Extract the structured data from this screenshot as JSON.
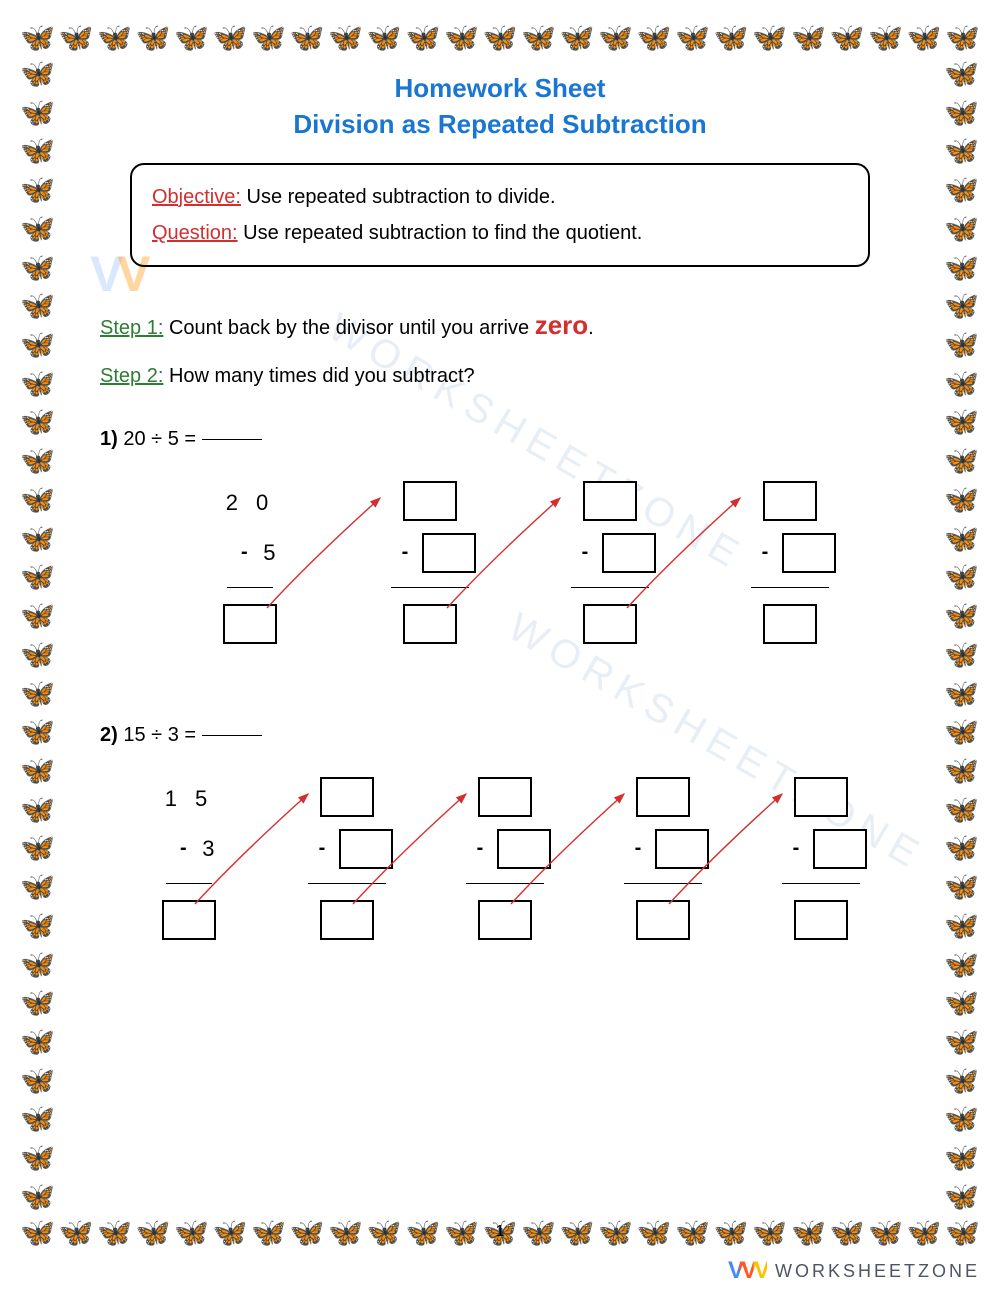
{
  "border": {
    "glyph": "🦋",
    "horizontal_count": 25,
    "vertical_count": 30
  },
  "title": {
    "line1": "Homework Sheet",
    "line2": "Division as Repeated Subtraction",
    "color": "#1976d2",
    "fontsize": 26
  },
  "objective_box": {
    "objective_label": "Objective:",
    "objective_text": " Use repeated subtraction to divide.",
    "question_label": "Question:",
    "question_text": " Use repeated subtraction to find the quotient.",
    "label_color": "#d32f2f"
  },
  "steps": {
    "step1_label": "Step 1:",
    "step1_text_a": " Count back by the divisor until you arrive ",
    "step1_zero": "zero",
    "step1_text_b": ".",
    "step2_label": "Step 2:",
    "step2_text": " How many times did you subtract?",
    "label_color": "#2e7d32",
    "zero_color": "#d32f2f"
  },
  "problems": [
    {
      "number": "1)",
      "expression": "  20  ÷  5 = ",
      "start_value": "2 0",
      "minus_value": "5",
      "steps_count": 4,
      "arrow_color": "#d32f2f"
    },
    {
      "number": "2)",
      "expression": "  15  ÷  3 = ",
      "start_value": "1 5",
      "minus_value": "3",
      "steps_count": 5,
      "arrow_color": "#d32f2f"
    }
  ],
  "page_number": "1",
  "watermark": {
    "brand_text": "WORKSHEETZONE",
    "logo_text": "W",
    "diag_text": "WORKSHEETZONE"
  },
  "colors": {
    "background": "#ffffff",
    "text": "#000000",
    "arrow": "#d32f2f"
  }
}
